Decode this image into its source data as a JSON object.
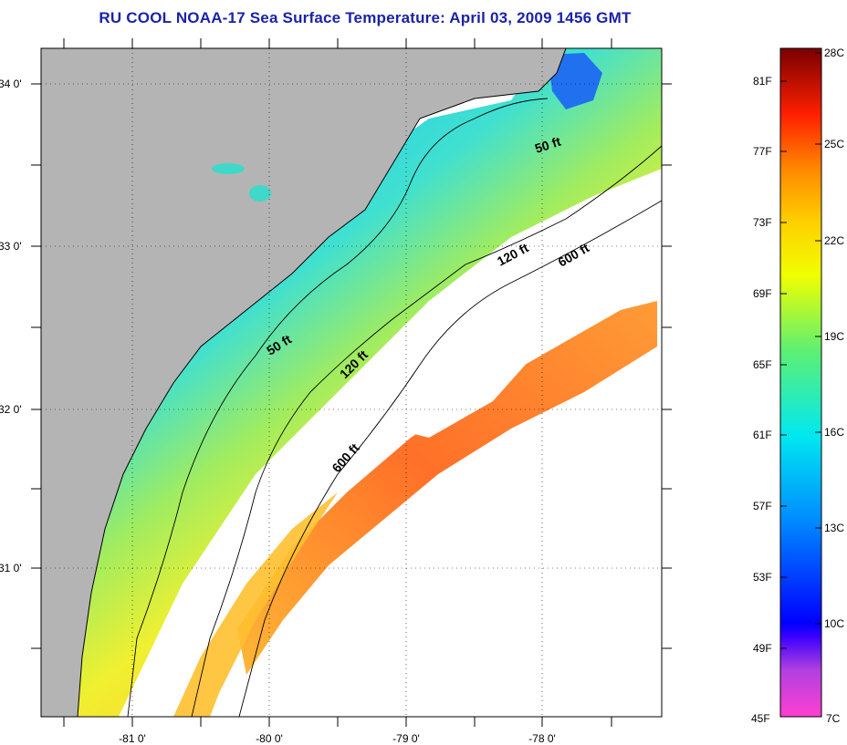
{
  "title": "RU COOL  NOAA-17  Sea Surface Temperature:  April 03, 2009 1456 GMT",
  "map": {
    "lat_labels": [
      "34 0'",
      "33 0'",
      "32 0'",
      "31 0'"
    ],
    "lon_labels": [
      "-81 0'",
      "-80 0'",
      "-79 0'",
      "-78 0'"
    ],
    "contour_labels": [
      "50 ft",
      "120 ft",
      "600 ft",
      "50 ft",
      "120 ft",
      "600 ft"
    ],
    "colors": {
      "land": "#b4b4b4",
      "cloud": "#ffffff"
    }
  },
  "colorbar": {
    "fahrenheit_labels": [
      "81F",
      "77F",
      "73F",
      "69F",
      "65F",
      "61F",
      "57F",
      "53F",
      "49F",
      "45F"
    ],
    "celsius_labels": [
      "28C",
      "25C",
      "22C",
      "19C",
      "16C",
      "13C",
      "10C",
      "7C"
    ]
  }
}
